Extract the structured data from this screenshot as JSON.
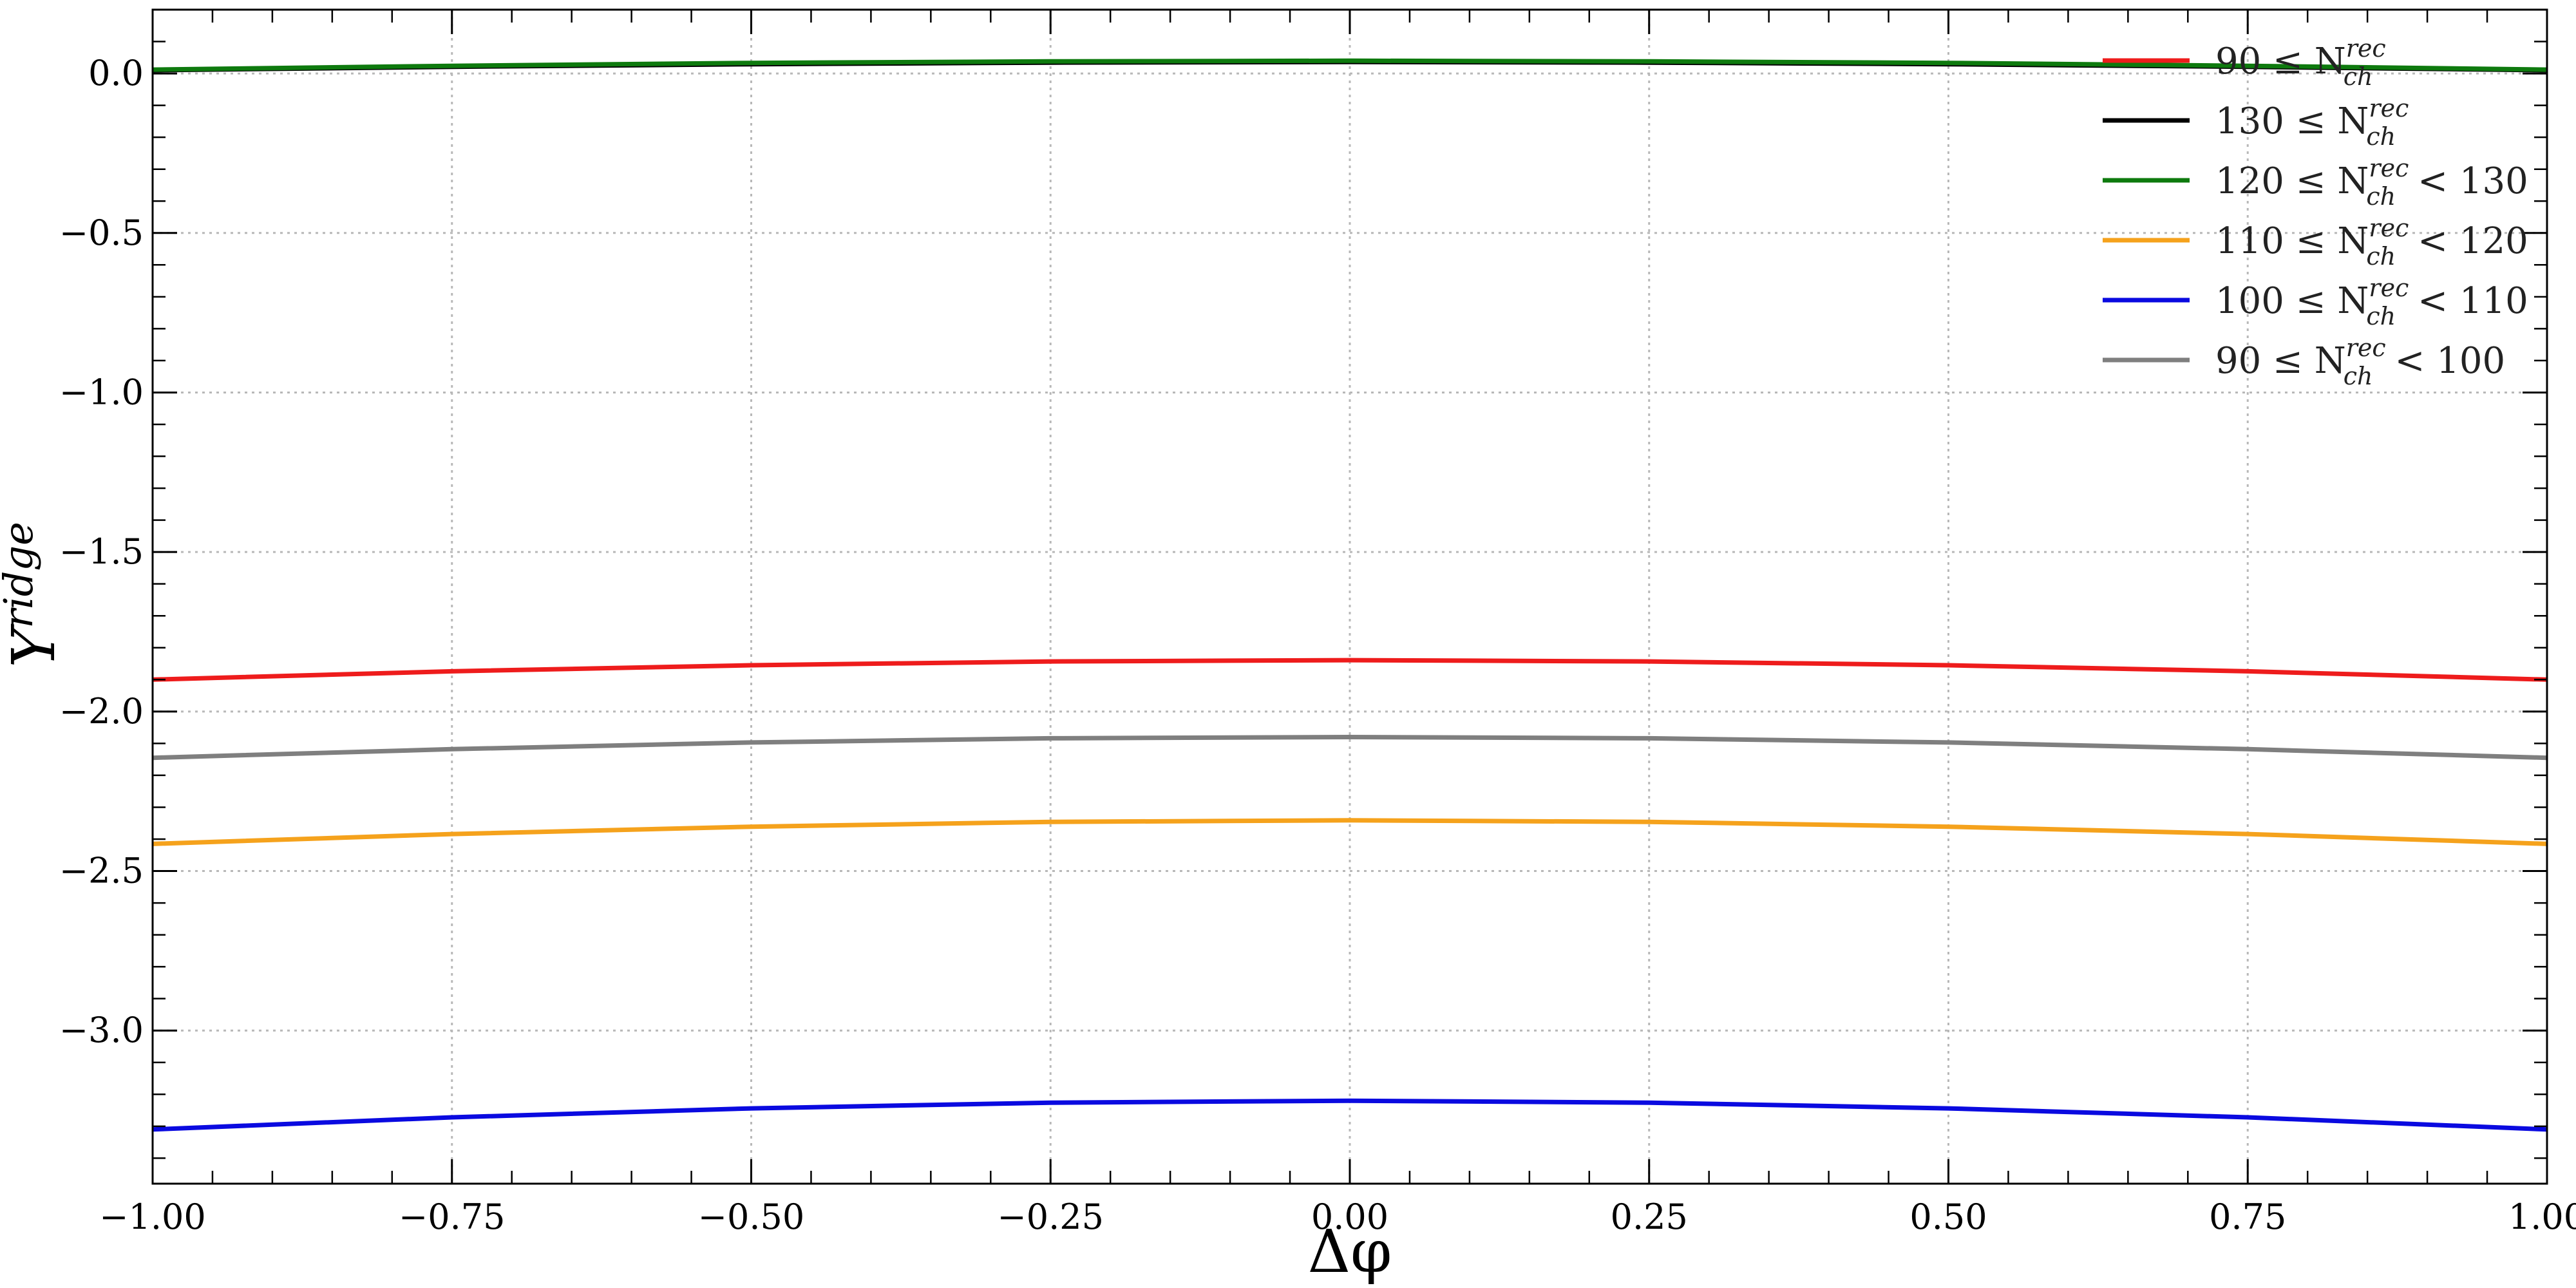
{
  "chart_data": {
    "type": "line",
    "title": "",
    "xlabel": "Δφ",
    "ylabel": "Y",
    "ylabel_superscript": "ridge",
    "xlim": [
      -1.0,
      1.0
    ],
    "ylim": [
      -3.48,
      0.2
    ],
    "grid": true,
    "legend_position": "top-right",
    "x_ticks": [
      -1.0,
      -0.75,
      -0.5,
      -0.25,
      0.0,
      0.25,
      0.5,
      0.75,
      1.0
    ],
    "x_tick_labels": [
      "−1.00",
      "−0.75",
      "−0.50",
      "−0.25",
      "0.00",
      "0.25",
      "0.50",
      "0.75",
      "1.00"
    ],
    "y_ticks": [
      0.0,
      -0.5,
      -1.0,
      -1.5,
      -2.0,
      -2.5,
      -3.0
    ],
    "y_tick_labels": [
      "0.0",
      "−0.5",
      "−1.0",
      "−1.5",
      "−2.0",
      "−2.5",
      "−3.0"
    ],
    "x": [
      -1.0,
      -0.75,
      -0.5,
      -0.25,
      0.0,
      0.25,
      0.5,
      0.75,
      1.0
    ],
    "series": [
      {
        "name": "90  ≤ N_ch^rec",
        "label_prefix": "90  ≤ N",
        "label_sub": "ch",
        "label_sup": "rec",
        "label_suffix": "",
        "color": "#ee1c1c",
        "values": [
          -1.9,
          -1.874,
          -1.855,
          -1.843,
          -1.839,
          -1.843,
          -1.855,
          -1.874,
          -1.9
        ]
      },
      {
        "name": "130 ≤ N_ch^rec",
        "label_prefix": "130 ≤ N",
        "label_sub": "ch",
        "label_sup": "rec",
        "label_suffix": "",
        "color": "#000000",
        "values": [
          0.01,
          0.021,
          0.029,
          0.034,
          0.036,
          0.034,
          0.029,
          0.021,
          0.01
        ]
      },
      {
        "name": "120 ≤ N_ch^rec < 130",
        "label_prefix": "120 ≤ N",
        "label_sub": "ch",
        "label_sup": "rec",
        "label_suffix": "< 130",
        "color": "#0e7a0e",
        "values": [
          0.012,
          0.024,
          0.033,
          0.038,
          0.04,
          0.038,
          0.033,
          0.024,
          0.012
        ]
      },
      {
        "name": "110 ≤ N_ch^rec < 120",
        "label_prefix": "110 ≤ N",
        "label_sub": "ch",
        "label_sup": "rec",
        "label_suffix": "< 120",
        "color": "#f5a21c",
        "values": [
          -2.415,
          -2.384,
          -2.361,
          -2.346,
          -2.341,
          -2.346,
          -2.361,
          -2.384,
          -2.415
        ]
      },
      {
        "name": "100 ≤ N_ch^rec < 110",
        "label_prefix": "100 ≤ N",
        "label_sub": "ch",
        "label_sup": "rec",
        "label_suffix": "< 110",
        "color": "#0a0ae0",
        "values": [
          -3.31,
          -3.272,
          -3.244,
          -3.226,
          -3.22,
          -3.226,
          -3.244,
          -3.272,
          -3.31
        ]
      },
      {
        "name": "90  ≤ N_ch^rec < 100",
        "label_prefix": "90  ≤ N",
        "label_sub": "ch",
        "label_sup": "rec",
        "label_suffix": "< 100",
        "color": "#7f7f7f",
        "values": [
          -2.145,
          -2.118,
          -2.097,
          -2.084,
          -2.08,
          -2.084,
          -2.097,
          -2.118,
          -2.145
        ]
      }
    ]
  }
}
